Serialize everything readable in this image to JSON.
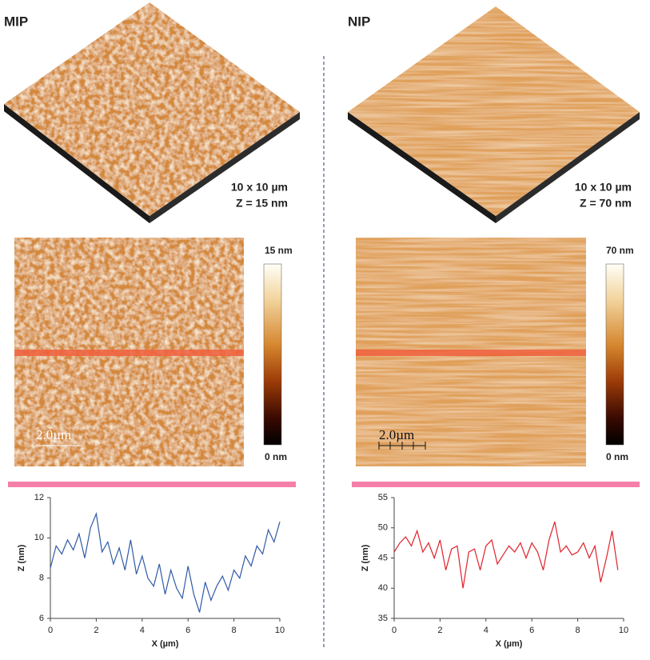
{
  "panels": [
    {
      "label": "MIP",
      "scan_size": "10 x 10 µm",
      "z_range": "Z = 15 nm",
      "colorbar_max": "15 nm",
      "colorbar_min": "0 nm",
      "scale_bar": "2.0µm"
    },
    {
      "label": "NIP",
      "scan_size": "10 x 10 µm",
      "z_range": "Z = 70 nm",
      "colorbar_max": "70 nm",
      "colorbar_min": "0 nm",
      "scale_bar": "2.0µm"
    }
  ],
  "chart_data": [
    {
      "type": "line",
      "x_label": "X (µm)",
      "y_label": "Z (nm)",
      "x": [
        0,
        0.25,
        0.5,
        0.75,
        1,
        1.25,
        1.5,
        1.75,
        2,
        2.25,
        2.5,
        2.75,
        3,
        3.25,
        3.5,
        3.75,
        4,
        4.25,
        4.5,
        4.75,
        5,
        5.25,
        5.5,
        5.75,
        6,
        6.25,
        6.5,
        6.75,
        7,
        7.25,
        7.5,
        7.75,
        8,
        8.25,
        8.5,
        8.75,
        9,
        9.25,
        9.5,
        9.75,
        10
      ],
      "series": [
        {
          "color": "#2f5aa8",
          "values": [
            8.5,
            9.6,
            9.2,
            9.9,
            9.4,
            10.2,
            9.0,
            10.5,
            11.2,
            9.3,
            9.8,
            8.7,
            9.5,
            8.4,
            9.9,
            8.2,
            9.1,
            8.0,
            7.6,
            8.7,
            7.2,
            8.4,
            7.5,
            7.0,
            8.6,
            7.2,
            6.3,
            7.8,
            6.9,
            7.6,
            8.1,
            7.4,
            8.4,
            8.0,
            9.1,
            8.6,
            9.6,
            9.2,
            10.4,
            9.8,
            10.8
          ]
        }
      ],
      "xlim": [
        0,
        10
      ],
      "ylim": [
        6,
        12
      ],
      "xticks": [
        0,
        2,
        4,
        6,
        8,
        10
      ],
      "yticks": [
        6,
        8,
        10,
        12
      ]
    },
    {
      "type": "line",
      "x_label": "X (µm)",
      "y_label": "Z (nm)",
      "x": [
        0,
        0.25,
        0.5,
        0.75,
        1,
        1.25,
        1.5,
        1.75,
        2,
        2.25,
        2.5,
        2.75,
        3,
        3.25,
        3.5,
        3.75,
        4,
        4.25,
        4.5,
        4.75,
        5,
        5.25,
        5.5,
        5.75,
        6,
        6.25,
        6.5,
        6.75,
        7,
        7.25,
        7.5,
        7.75,
        8,
        8.25,
        8.5,
        8.75,
        9,
        9.25,
        9.5,
        9.75
      ],
      "series": [
        {
          "color": "#e0202a",
          "values": [
            46,
            47.5,
            48.5,
            47,
            49.5,
            46,
            47.5,
            45,
            48,
            43,
            46.5,
            47,
            40,
            46,
            46.5,
            43,
            47,
            48,
            44,
            45.5,
            47,
            46,
            47.5,
            45,
            47.5,
            46,
            43,
            48,
            51,
            46,
            47,
            45.5,
            46,
            47.5,
            45,
            47,
            41,
            45,
            49.5,
            43
          ]
        }
      ],
      "xlim": [
        0,
        10
      ],
      "ylim": [
        35,
        55
      ],
      "xticks": [
        0,
        2,
        4,
        6,
        8,
        10
      ],
      "yticks": [
        35,
        40,
        45,
        50,
        55
      ]
    }
  ]
}
